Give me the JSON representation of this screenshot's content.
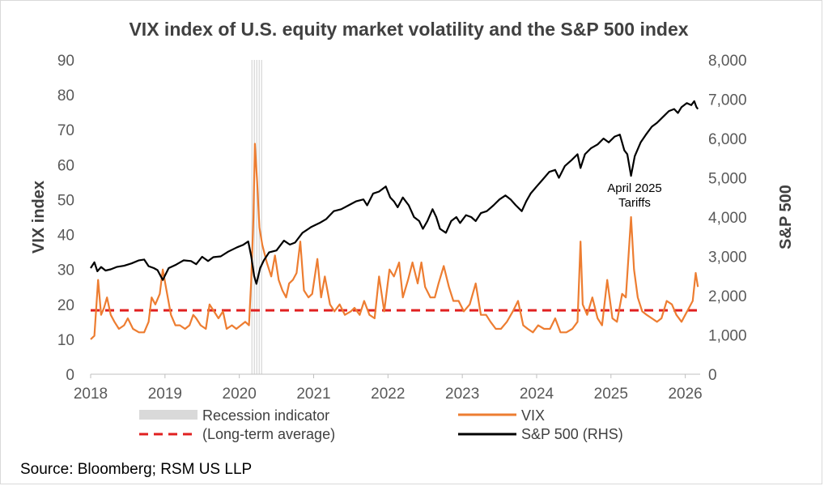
{
  "chart_data": {
    "type": "line",
    "title": "VIX index of U.S. equity market volatility and the S&P 500 index",
    "ylabel_left": "VIX index",
    "ylabel_right": "S&P 500",
    "ylim_left": [
      0,
      90
    ],
    "yticks_left": [
      "0",
      "10",
      "20",
      "30",
      "40",
      "50",
      "60",
      "70",
      "80",
      "90"
    ],
    "ylim_right": [
      0,
      8000
    ],
    "yticks_right": [
      "0",
      "1,000",
      "2,000",
      "3,000",
      "4,000",
      "5,000",
      "6,000",
      "7,000",
      "8,000"
    ],
    "xlim": [
      2018,
      2026.2
    ],
    "xticks": [
      "2018",
      "2019",
      "2020",
      "2021",
      "2022",
      "2023",
      "2024",
      "2025",
      "2026"
    ],
    "long_term_average": 18.3,
    "recession": [
      2020.17,
      2020.33
    ],
    "series": [
      {
        "name": "VIX",
        "axis": "left",
        "color": "#ED7D31",
        "points": [
          [
            2018.0,
            10
          ],
          [
            2018.05,
            11
          ],
          [
            2018.1,
            27
          ],
          [
            2018.14,
            17
          ],
          [
            2018.18,
            19
          ],
          [
            2018.22,
            22
          ],
          [
            2018.27,
            17
          ],
          [
            2018.32,
            15
          ],
          [
            2018.38,
            13
          ],
          [
            2018.45,
            14
          ],
          [
            2018.5,
            16
          ],
          [
            2018.57,
            13
          ],
          [
            2018.65,
            12
          ],
          [
            2018.72,
            12
          ],
          [
            2018.78,
            15
          ],
          [
            2018.82,
            22
          ],
          [
            2018.87,
            20
          ],
          [
            2018.93,
            23
          ],
          [
            2018.97,
            30
          ],
          [
            2019.02,
            24
          ],
          [
            2019.08,
            17
          ],
          [
            2019.14,
            14
          ],
          [
            2019.2,
            14
          ],
          [
            2019.27,
            13
          ],
          [
            2019.33,
            14
          ],
          [
            2019.38,
            17
          ],
          [
            2019.42,
            16
          ],
          [
            2019.48,
            14
          ],
          [
            2019.55,
            13
          ],
          [
            2019.6,
            20
          ],
          [
            2019.66,
            18
          ],
          [
            2019.72,
            16
          ],
          [
            2019.78,
            18
          ],
          [
            2019.83,
            13
          ],
          [
            2019.9,
            14
          ],
          [
            2019.96,
            13
          ],
          [
            2020.02,
            14
          ],
          [
            2020.08,
            15
          ],
          [
            2020.13,
            14
          ],
          [
            2020.16,
            27
          ],
          [
            2020.19,
            45
          ],
          [
            2020.21,
            66
          ],
          [
            2020.24,
            55
          ],
          [
            2020.27,
            42
          ],
          [
            2020.31,
            37
          ],
          [
            2020.37,
            32
          ],
          [
            2020.43,
            28
          ],
          [
            2020.48,
            34
          ],
          [
            2020.53,
            27
          ],
          [
            2020.58,
            24
          ],
          [
            2020.63,
            22
          ],
          [
            2020.67,
            26
          ],
          [
            2020.72,
            27
          ],
          [
            2020.77,
            29
          ],
          [
            2020.82,
            38
          ],
          [
            2020.87,
            24
          ],
          [
            2020.93,
            22
          ],
          [
            2020.98,
            23
          ],
          [
            2021.05,
            33
          ],
          [
            2021.1,
            22
          ],
          [
            2021.15,
            28
          ],
          [
            2021.22,
            20
          ],
          [
            2021.28,
            18
          ],
          [
            2021.35,
            20
          ],
          [
            2021.42,
            17
          ],
          [
            2021.5,
            18
          ],
          [
            2021.55,
            19
          ],
          [
            2021.62,
            17
          ],
          [
            2021.68,
            21
          ],
          [
            2021.75,
            17
          ],
          [
            2021.82,
            16
          ],
          [
            2021.88,
            28
          ],
          [
            2021.95,
            18
          ],
          [
            2022.02,
            30
          ],
          [
            2022.08,
            28
          ],
          [
            2022.15,
            32
          ],
          [
            2022.2,
            22
          ],
          [
            2022.27,
            27
          ],
          [
            2022.33,
            32
          ],
          [
            2022.4,
            26
          ],
          [
            2022.45,
            32
          ],
          [
            2022.5,
            25
          ],
          [
            2022.57,
            22
          ],
          [
            2022.63,
            22
          ],
          [
            2022.68,
            26
          ],
          [
            2022.75,
            31
          ],
          [
            2022.82,
            25
          ],
          [
            2022.88,
            21
          ],
          [
            2022.95,
            21
          ],
          [
            2023.02,
            18
          ],
          [
            2023.1,
            20
          ],
          [
            2023.18,
            26
          ],
          [
            2023.25,
            17
          ],
          [
            2023.32,
            17
          ],
          [
            2023.38,
            15
          ],
          [
            2023.45,
            13
          ],
          [
            2023.52,
            13
          ],
          [
            2023.6,
            15
          ],
          [
            2023.68,
            18
          ],
          [
            2023.75,
            21
          ],
          [
            2023.82,
            14
          ],
          [
            2023.88,
            13
          ],
          [
            2023.95,
            12
          ],
          [
            2024.02,
            14
          ],
          [
            2024.1,
            13
          ],
          [
            2024.18,
            13
          ],
          [
            2024.25,
            16
          ],
          [
            2024.32,
            12
          ],
          [
            2024.4,
            12
          ],
          [
            2024.48,
            13
          ],
          [
            2024.55,
            15
          ],
          [
            2024.59,
            38
          ],
          [
            2024.62,
            20
          ],
          [
            2024.68,
            17
          ],
          [
            2024.75,
            22
          ],
          [
            2024.82,
            16
          ],
          [
            2024.88,
            14
          ],
          [
            2024.95,
            27
          ],
          [
            2025.02,
            16
          ],
          [
            2025.08,
            15
          ],
          [
            2025.15,
            23
          ],
          [
            2025.2,
            22
          ],
          [
            2025.27,
            45
          ],
          [
            2025.31,
            30
          ],
          [
            2025.36,
            22
          ],
          [
            2025.42,
            18
          ],
          [
            2025.48,
            17
          ],
          [
            2025.55,
            16
          ],
          [
            2025.62,
            15
          ],
          [
            2025.68,
            16
          ],
          [
            2025.75,
            21
          ],
          [
            2025.82,
            20
          ],
          [
            2025.88,
            17
          ],
          [
            2025.95,
            15
          ],
          [
            2026.0,
            17
          ],
          [
            2026.05,
            19
          ],
          [
            2026.1,
            21
          ],
          [
            2026.14,
            29
          ],
          [
            2026.17,
            25
          ]
        ]
      },
      {
        "name": "S&P 500 (RHS)",
        "axis": "right",
        "color": "#000000",
        "points": [
          [
            2018.0,
            2700
          ],
          [
            2018.05,
            2850
          ],
          [
            2018.09,
            2620
          ],
          [
            2018.14,
            2730
          ],
          [
            2018.2,
            2640
          ],
          [
            2018.27,
            2670
          ],
          [
            2018.35,
            2730
          ],
          [
            2018.45,
            2760
          ],
          [
            2018.55,
            2820
          ],
          [
            2018.65,
            2900
          ],
          [
            2018.72,
            2920
          ],
          [
            2018.78,
            2750
          ],
          [
            2018.85,
            2700
          ],
          [
            2018.9,
            2650
          ],
          [
            2018.97,
            2400
          ],
          [
            2019.05,
            2700
          ],
          [
            2019.15,
            2790
          ],
          [
            2019.25,
            2900
          ],
          [
            2019.35,
            2880
          ],
          [
            2019.42,
            2800
          ],
          [
            2019.5,
            2990
          ],
          [
            2019.58,
            2880
          ],
          [
            2019.65,
            2980
          ],
          [
            2019.75,
            3000
          ],
          [
            2019.85,
            3120
          ],
          [
            2019.97,
            3230
          ],
          [
            2020.05,
            3290
          ],
          [
            2020.12,
            3380
          ],
          [
            2020.16,
            3000
          ],
          [
            2020.2,
            2500
          ],
          [
            2020.23,
            2300
          ],
          [
            2020.28,
            2700
          ],
          [
            2020.33,
            2900
          ],
          [
            2020.4,
            3100
          ],
          [
            2020.5,
            3150
          ],
          [
            2020.6,
            3400
          ],
          [
            2020.68,
            3300
          ],
          [
            2020.75,
            3350
          ],
          [
            2020.85,
            3600
          ],
          [
            2020.97,
            3750
          ],
          [
            2021.08,
            3850
          ],
          [
            2021.17,
            3950
          ],
          [
            2021.27,
            4150
          ],
          [
            2021.37,
            4200
          ],
          [
            2021.47,
            4300
          ],
          [
            2021.57,
            4400
          ],
          [
            2021.67,
            4450
          ],
          [
            2021.72,
            4300
          ],
          [
            2021.8,
            4600
          ],
          [
            2021.88,
            4650
          ],
          [
            2021.97,
            4780
          ],
          [
            2022.03,
            4500
          ],
          [
            2022.08,
            4400
          ],
          [
            2022.13,
            4250
          ],
          [
            2022.2,
            4500
          ],
          [
            2022.28,
            4300
          ],
          [
            2022.35,
            4000
          ],
          [
            2022.42,
            3900
          ],
          [
            2022.47,
            3700
          ],
          [
            2022.53,
            3900
          ],
          [
            2022.6,
            4200
          ],
          [
            2022.65,
            4000
          ],
          [
            2022.7,
            3700
          ],
          [
            2022.78,
            3600
          ],
          [
            2022.85,
            3900
          ],
          [
            2022.92,
            4000
          ],
          [
            2022.97,
            3850
          ],
          [
            2023.05,
            4050
          ],
          [
            2023.12,
            4000
          ],
          [
            2023.18,
            3900
          ],
          [
            2023.25,
            4100
          ],
          [
            2023.33,
            4150
          ],
          [
            2023.42,
            4300
          ],
          [
            2023.5,
            4450
          ],
          [
            2023.58,
            4550
          ],
          [
            2023.65,
            4450
          ],
          [
            2023.72,
            4300
          ],
          [
            2023.8,
            4150
          ],
          [
            2023.86,
            4400
          ],
          [
            2023.92,
            4600
          ],
          [
            2024.0,
            4780
          ],
          [
            2024.08,
            4950
          ],
          [
            2024.17,
            5150
          ],
          [
            2024.25,
            5200
          ],
          [
            2024.3,
            5000
          ],
          [
            2024.38,
            5300
          ],
          [
            2024.47,
            5450
          ],
          [
            2024.55,
            5600
          ],
          [
            2024.59,
            5250
          ],
          [
            2024.65,
            5600
          ],
          [
            2024.73,
            5750
          ],
          [
            2024.82,
            5850
          ],
          [
            2024.9,
            6000
          ],
          [
            2024.97,
            5900
          ],
          [
            2025.05,
            6050
          ],
          [
            2025.12,
            6100
          ],
          [
            2025.18,
            5700
          ],
          [
            2025.22,
            5600
          ],
          [
            2025.27,
            5050
          ],
          [
            2025.32,
            5550
          ],
          [
            2025.4,
            5900
          ],
          [
            2025.47,
            6100
          ],
          [
            2025.55,
            6300
          ],
          [
            2025.62,
            6400
          ],
          [
            2025.7,
            6550
          ],
          [
            2025.78,
            6700
          ],
          [
            2025.85,
            6750
          ],
          [
            2025.9,
            6650
          ],
          [
            2025.95,
            6800
          ],
          [
            2026.02,
            6900
          ],
          [
            2026.08,
            6850
          ],
          [
            2026.12,
            6950
          ],
          [
            2026.15,
            6800
          ],
          [
            2026.17,
            6750
          ]
        ]
      }
    ],
    "annotation": [
      "April 2025",
      "Tariffs"
    ],
    "legend": {
      "recession": "Recession indicator",
      "average": "(Long-term average)",
      "vix": "VIX",
      "sp500": "S&P 500 (RHS)"
    }
  },
  "source": "Source: Bloomberg; RSM US LLP",
  "colors": {
    "vix": "#ED7D31",
    "sp500": "#000000",
    "average": "#E02020",
    "recession": "#D9D9D9",
    "text": "#404040",
    "ticks": "#595959"
  }
}
